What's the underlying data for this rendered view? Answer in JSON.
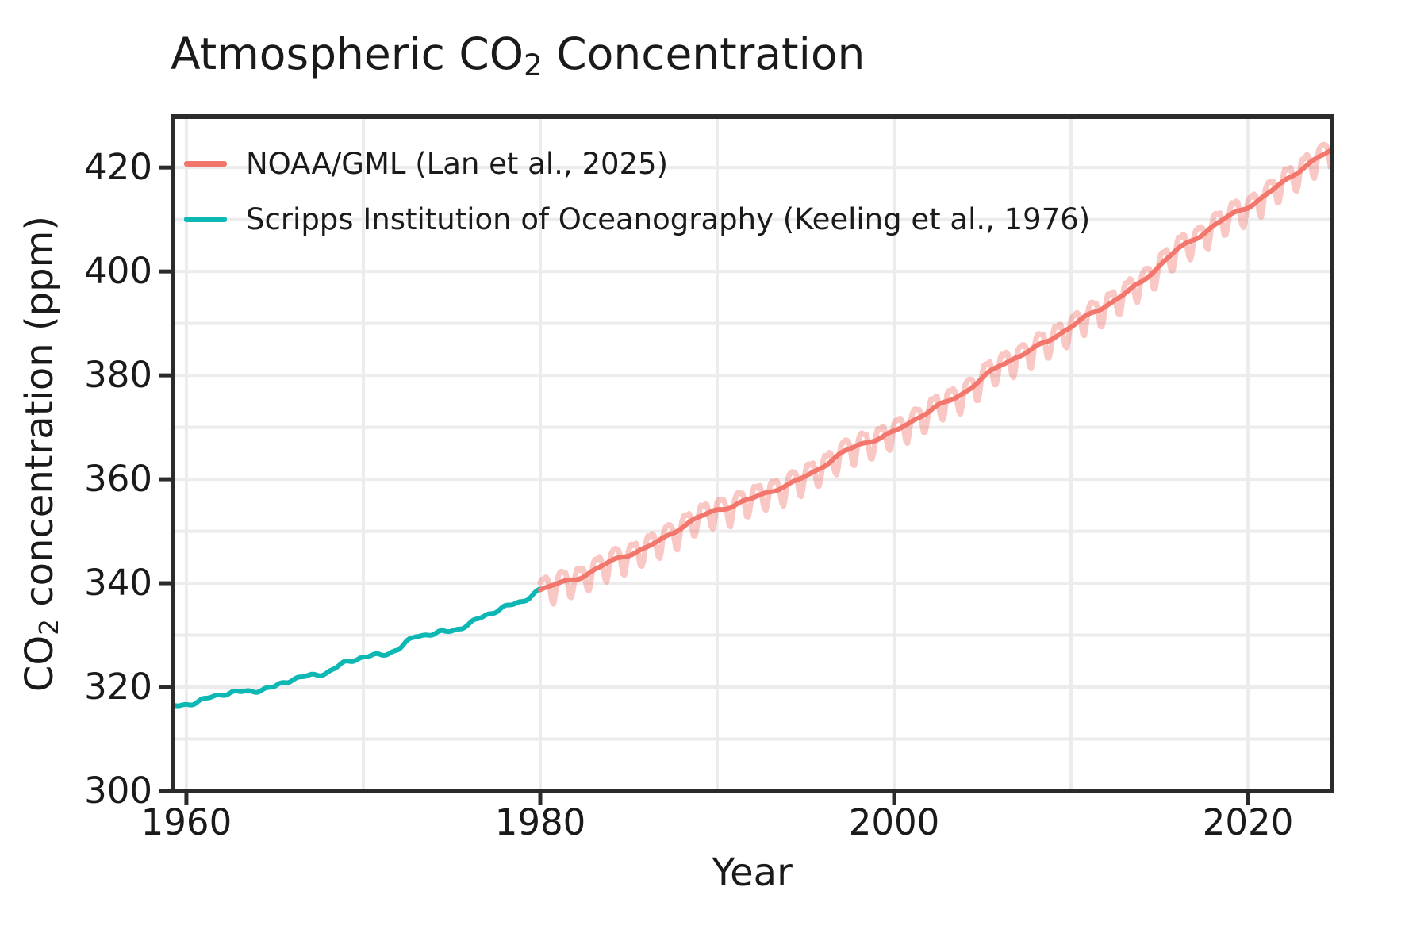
{
  "title": {
    "prefix": "Atmospheric CO",
    "sub": "2",
    "suffix": " Concentration"
  },
  "axes": {
    "x_label": "Year",
    "y_label_prefix": "CO",
    "y_label_sub": "2",
    "y_label_suffix": " concentration (ppm)"
  },
  "plot_style": {
    "spine_color": "#2b2b2b",
    "grid_color": "#ececec",
    "text_color": "#1a1a1a",
    "background": "#ffffff"
  },
  "chart_data": {
    "type": "line",
    "title": "Atmospheric CO2 Concentration",
    "xlabel": "Year",
    "ylabel": "CO2 concentration (ppm)",
    "xlim": [
      1959.24,
      2024.75
    ],
    "ylim": [
      300,
      429.8
    ],
    "xticks": [
      1960,
      1980,
      2000,
      2020
    ],
    "yticks": [
      300,
      320,
      340,
      360,
      380,
      400,
      420
    ],
    "grid": {
      "x_interval": 10,
      "y_interval": 10,
      "visible": true
    },
    "legend_position": "upper left",
    "series": [
      {
        "name": "NOAA/GML (Lan et al., 2025)",
        "color": "#f2766c",
        "style": "trend_plus_monthly_seasonal",
        "seasonal_alpha": 0.4,
        "seasonal_peak_to_trough_ppm": 5.5,
        "points": [
          [
            1980,
            338.6
          ],
          [
            1982,
            341.0
          ],
          [
            1984,
            344.0
          ],
          [
            1986,
            346.9
          ],
          [
            1988,
            350.8
          ],
          [
            1990,
            354.2
          ],
          [
            1992,
            356.3
          ],
          [
            1994,
            358.8
          ],
          [
            1996,
            362.7
          ],
          [
            1998,
            366.6
          ],
          [
            2000,
            369.2
          ],
          [
            2002,
            373.0
          ],
          [
            2004,
            377.0
          ],
          [
            2006,
            381.8
          ],
          [
            2008,
            385.5
          ],
          [
            2010,
            389.2
          ],
          [
            2012,
            393.7
          ],
          [
            2014,
            397.8
          ],
          [
            2016,
            404.3
          ],
          [
            2018,
            408.6
          ],
          [
            2020,
            412.5
          ],
          [
            2022,
            417.2
          ],
          [
            2024,
            421.9
          ],
          [
            2024.75,
            423.4
          ]
        ]
      },
      {
        "name": "Scripps Institution of Oceanography (Keeling et al., 1976)",
        "color": "#0db8b4",
        "style": "monthly",
        "points": [
          [
            1959.24,
            316.2
          ],
          [
            1960,
            316.9
          ],
          [
            1961,
            317.6
          ],
          [
            1962,
            318.5
          ],
          [
            1963,
            319.0
          ],
          [
            1964,
            319.6
          ],
          [
            1965,
            320.0
          ],
          [
            1966,
            321.4
          ],
          [
            1967,
            322.2
          ],
          [
            1968,
            323.1
          ],
          [
            1969,
            324.6
          ],
          [
            1970,
            325.7
          ],
          [
            1971,
            326.3
          ],
          [
            1972,
            327.5
          ],
          [
            1973,
            329.7
          ],
          [
            1974,
            330.2
          ],
          [
            1975,
            331.1
          ],
          [
            1976,
            332.1
          ],
          [
            1977,
            333.8
          ],
          [
            1978,
            335.4
          ],
          [
            1979,
            336.8
          ],
          [
            1980,
            338.6
          ]
        ]
      }
    ]
  }
}
